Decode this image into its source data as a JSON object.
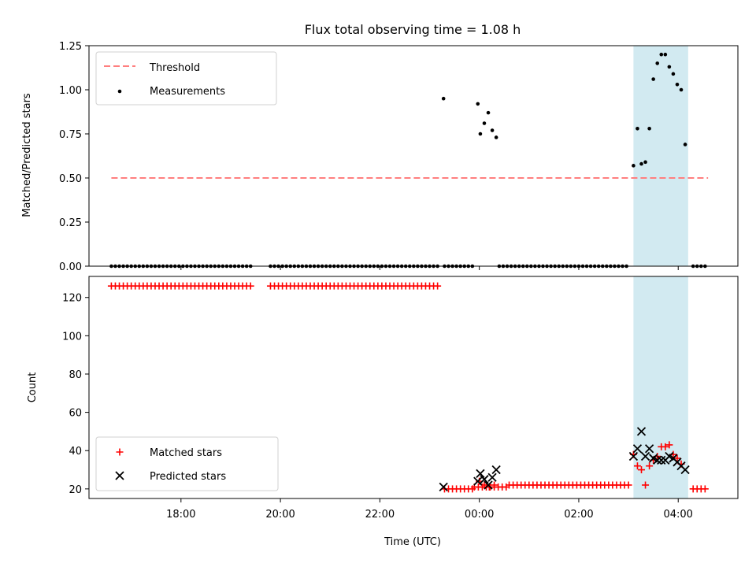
{
  "colors": {
    "threshold": "#ff7f7f",
    "measurement": "#000000",
    "matched": "#ff0000",
    "predicted": "#000000",
    "span": "#add8e6"
  },
  "chart_data": [
    {
      "type": "scatter",
      "title": "Flux total observing time = 1.08 h",
      "ylabel": "Matched/Predicted stars",
      "xlabel": "",
      "x_unit": "hours since 17:00 UTC",
      "xlim": [
        -0.85,
        12.2
      ],
      "ylim": [
        0,
        1.25
      ],
      "yticks": [
        0,
        0.25,
        0.5,
        0.75,
        1.0,
        1.25
      ],
      "ytick_labels": [
        "0.00",
        "0.25",
        "0.50",
        "0.75",
        "1.00",
        "1.25"
      ],
      "xticks": [
        1,
        3,
        5,
        7,
        9,
        11
      ],
      "highlight_span": [
        10.1,
        11.2
      ],
      "legend": {
        "position": "top-left",
        "entries": [
          "Threshold",
          "Measurements"
        ]
      },
      "threshold": {
        "name": "Threshold",
        "y": 0.5,
        "x_range": [
          -0.4,
          11.6
        ]
      },
      "measurements": {
        "name": "Measurements",
        "zero_segments": [
          [
            -0.4,
            2.4
          ],
          [
            2.8,
            6.2
          ],
          [
            6.3,
            6.9
          ],
          [
            7.4,
            10.0
          ],
          [
            11.3,
            11.6
          ]
        ],
        "zero_step": 0.08,
        "points": [
          [
            6.28,
            0.95
          ],
          [
            6.97,
            0.92
          ],
          [
            7.02,
            0.75
          ],
          [
            7.1,
            0.81
          ],
          [
            7.18,
            0.87
          ],
          [
            7.26,
            0.77
          ],
          [
            7.34,
            0.73
          ],
          [
            10.1,
            0.57
          ],
          [
            10.18,
            0.78
          ],
          [
            10.26,
            0.58
          ],
          [
            10.34,
            0.59
          ],
          [
            10.42,
            0.78
          ],
          [
            10.5,
            1.06
          ],
          [
            10.58,
            1.15
          ],
          [
            10.66,
            1.2
          ],
          [
            10.74,
            1.2
          ],
          [
            10.82,
            1.13
          ],
          [
            10.9,
            1.09
          ],
          [
            10.98,
            1.03
          ],
          [
            11.06,
            1.0
          ],
          [
            11.14,
            0.69
          ]
        ]
      }
    },
    {
      "type": "scatter",
      "title": "",
      "ylabel": "Count",
      "xlabel": "Time (UTC)",
      "x_unit": "hours since 17:00 UTC",
      "xlim": [
        -0.85,
        12.2
      ],
      "ylim": [
        15,
        131
      ],
      "yticks": [
        20,
        40,
        60,
        80,
        100,
        120
      ],
      "ytick_labels": [
        "20",
        "40",
        "60",
        "80",
        "100",
        "120"
      ],
      "xticks": [
        1,
        3,
        5,
        7,
        9,
        11
      ],
      "xtick_labels": [
        "18:00",
        "20:00",
        "22:00",
        "00:00",
        "02:00",
        "04:00"
      ],
      "highlight_span": [
        10.1,
        11.2
      ],
      "legend": {
        "position": "bottom-left",
        "entries": [
          "Matched stars",
          "Predicted stars"
        ]
      },
      "matched": {
        "name": "Matched stars",
        "constant_segments": [
          {
            "range": [
              -0.4,
              2.4
            ],
            "y": 126
          },
          {
            "range": [
              2.8,
              6.2
            ],
            "y": 126
          },
          {
            "range": [
              6.3,
              6.9
            ],
            "y": 20
          },
          {
            "range": [
              6.9,
              7.6
            ],
            "y": 21
          },
          {
            "range": [
              7.6,
              10.0
            ],
            "y": 22
          },
          {
            "range": [
              11.3,
              11.6
            ],
            "y": 20
          }
        ],
        "step": 0.08,
        "points": [
          [
            7.0,
            24
          ],
          [
            7.1,
            22
          ],
          [
            7.2,
            21
          ],
          [
            7.3,
            22
          ],
          [
            10.1,
            38
          ],
          [
            10.18,
            32
          ],
          [
            10.26,
            30
          ],
          [
            10.34,
            22
          ],
          [
            10.42,
            32
          ],
          [
            10.5,
            35
          ],
          [
            10.58,
            37
          ],
          [
            10.66,
            42
          ],
          [
            10.74,
            42
          ],
          [
            10.82,
            43
          ],
          [
            10.9,
            38
          ],
          [
            10.98,
            36
          ],
          [
            11.06,
            33
          ]
        ]
      },
      "predicted": {
        "name": "Predicted stars",
        "points": [
          [
            6.28,
            21
          ],
          [
            6.97,
            24
          ],
          [
            7.02,
            28
          ],
          [
            7.1,
            25
          ],
          [
            7.18,
            22
          ],
          [
            7.26,
            26
          ],
          [
            7.34,
            30
          ],
          [
            10.1,
            37
          ],
          [
            10.18,
            41
          ],
          [
            10.26,
            50
          ],
          [
            10.34,
            37
          ],
          [
            10.42,
            41
          ],
          [
            10.5,
            36
          ],
          [
            10.58,
            35
          ],
          [
            10.66,
            35
          ],
          [
            10.74,
            35
          ],
          [
            10.82,
            37
          ],
          [
            10.9,
            36
          ],
          [
            10.98,
            34
          ],
          [
            11.06,
            32
          ],
          [
            11.14,
            30
          ]
        ]
      }
    }
  ]
}
